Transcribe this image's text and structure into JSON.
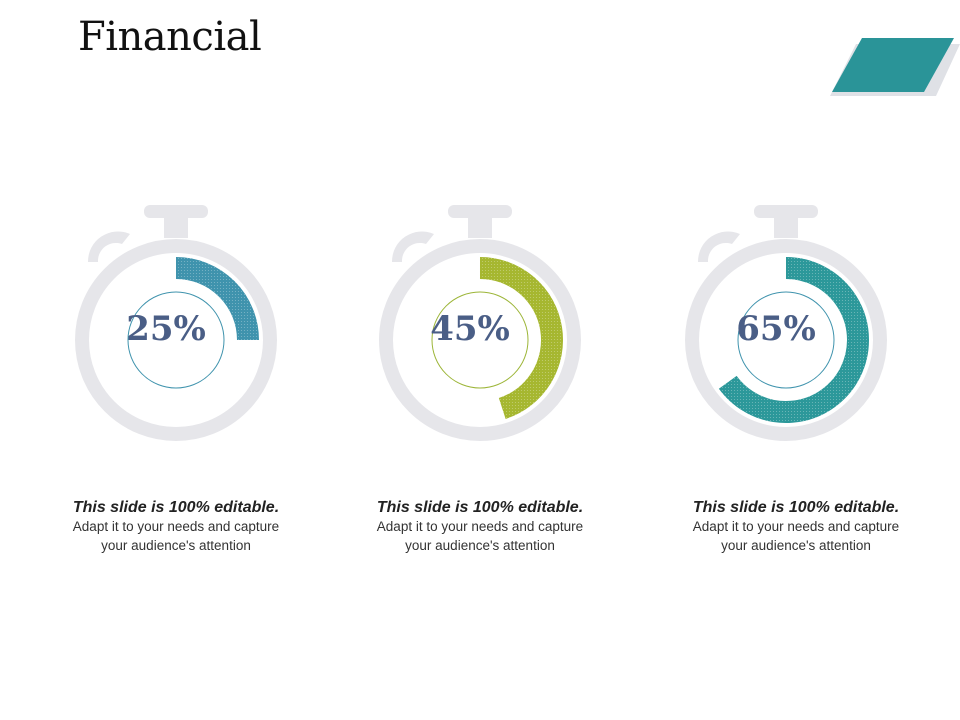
{
  "title": "Financial",
  "colors": {
    "teal_dark": "#2a9498",
    "blue_teal": "#3c8ea8",
    "lime": "#a9b934",
    "watch_gray": "#e6e6ea",
    "label": "#4a5e86"
  },
  "gauges": [
    {
      "value": 25,
      "label": "25%",
      "color": "#3f93ad",
      "inner_ring_color": "#3f93ad",
      "desc_bold": "This slide is 100% editable.",
      "desc_text": " Adapt it to your needs and capture your audience's attention"
    },
    {
      "value": 45,
      "label": "45%",
      "color": "#a6b730",
      "inner_ring_color": "#9cb537",
      "desc_bold": "This slide is 100% editable.",
      "desc_text": " Adapt it to your needs and capture your audience's attention"
    },
    {
      "value": 65,
      "label": "65%",
      "color": "#2c989a",
      "inner_ring_color": "#3f93ad",
      "desc_bold": "This slide is 100% editable.",
      "desc_text": " Adapt it to your needs and capture your audience's attention"
    }
  ]
}
